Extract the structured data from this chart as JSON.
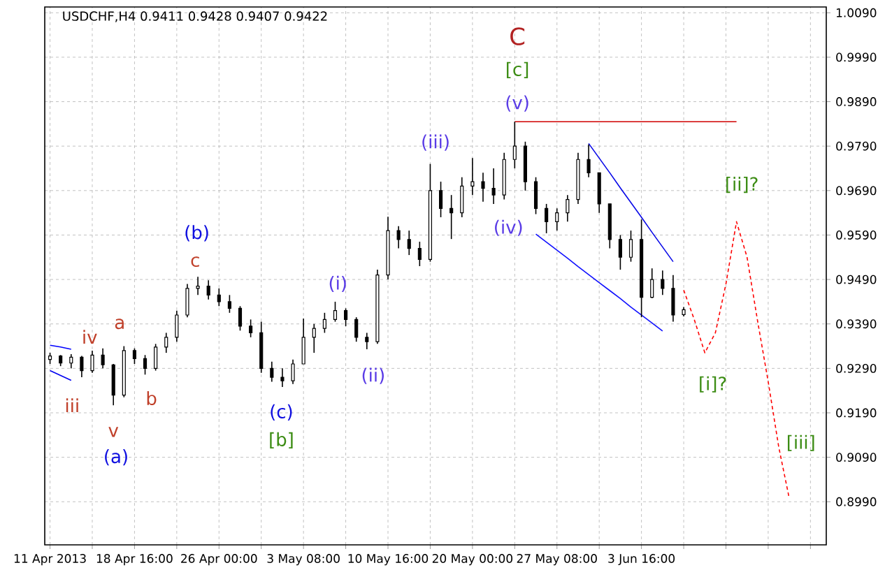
{
  "chart_data": {
    "type": "candlestick",
    "title": "USDCHF,H4  0.9411 0.9428 0.9407 0.9422",
    "color": "#000000",
    "categories": [
      "11 Apr 2013",
      null,
      null,
      null,
      null,
      null,
      null,
      null,
      "18 Apr 16:00",
      null,
      null,
      null,
      null,
      null,
      null,
      null,
      "26 Apr 00:00",
      null,
      null,
      null,
      null,
      null,
      null,
      null,
      "3 May 08:00",
      null,
      null,
      null,
      null,
      null,
      null,
      null,
      "10 May 16:00",
      null,
      null,
      null,
      null,
      null,
      null,
      null,
      "20 May 00:00",
      null,
      null,
      null,
      null,
      null,
      null,
      null,
      "27 May 08:00",
      null,
      null,
      null,
      null,
      null,
      null,
      null,
      "3 Jun 16:00",
      null,
      null,
      null,
      null,
      null,
      null,
      null,
      null,
      null,
      null,
      null,
      null,
      null,
      null,
      null,
      null,
      null
    ],
    "ohlc": [
      [
        0.931,
        0.9325,
        0.93,
        0.9318
      ],
      [
        0.9318,
        0.932,
        0.9295,
        0.9302
      ],
      [
        0.9302,
        0.9322,
        0.929,
        0.9315
      ],
      [
        0.9315,
        0.9318,
        0.927,
        0.9285
      ],
      [
        0.9285,
        0.933,
        0.928,
        0.932
      ],
      [
        0.932,
        0.9335,
        0.929,
        0.9298
      ],
      [
        0.9298,
        0.93,
        0.9207,
        0.923
      ],
      [
        0.923,
        0.934,
        0.9225,
        0.933
      ],
      [
        0.933,
        0.9335,
        0.93,
        0.9312
      ],
      [
        0.9312,
        0.932,
        0.9276,
        0.929
      ],
      [
        0.929,
        0.9345,
        0.9285,
        0.9338
      ],
      [
        0.9338,
        0.937,
        0.9325,
        0.936
      ],
      [
        0.936,
        0.942,
        0.935,
        0.941
      ],
      [
        0.941,
        0.948,
        0.9405,
        0.947
      ],
      [
        0.947,
        0.9496,
        0.9455,
        0.9475
      ],
      [
        0.9475,
        0.9488,
        0.9445,
        0.9455
      ],
      [
        0.9455,
        0.947,
        0.943,
        0.944
      ],
      [
        0.944,
        0.9455,
        0.9415,
        0.9425
      ],
      [
        0.9425,
        0.943,
        0.9375,
        0.9385
      ],
      [
        0.9385,
        0.94,
        0.936,
        0.937
      ],
      [
        0.937,
        0.9395,
        0.928,
        0.929
      ],
      [
        0.929,
        0.9305,
        0.926,
        0.927
      ],
      [
        0.927,
        0.929,
        0.9248,
        0.9262
      ],
      [
        0.9262,
        0.931,
        0.9255,
        0.93
      ],
      [
        0.93,
        0.9402,
        0.93,
        0.936
      ],
      [
        0.936,
        0.939,
        0.9325,
        0.938
      ],
      [
        0.938,
        0.9415,
        0.937,
        0.94
      ],
      [
        0.94,
        0.944,
        0.9395,
        0.942
      ],
      [
        0.942,
        0.9425,
        0.9385,
        0.94
      ],
      [
        0.94,
        0.9405,
        0.935,
        0.936
      ],
      [
        0.936,
        0.937,
        0.9333,
        0.935
      ],
      [
        0.935,
        0.9512,
        0.9345,
        0.95
      ],
      [
        0.95,
        0.9631,
        0.949,
        0.96
      ],
      [
        0.96,
        0.961,
        0.956,
        0.958
      ],
      [
        0.958,
        0.96,
        0.9545,
        0.956
      ],
      [
        0.956,
        0.9575,
        0.952,
        0.9535
      ],
      [
        0.9535,
        0.975,
        0.953,
        0.969
      ],
      [
        0.969,
        0.971,
        0.963,
        0.965
      ],
      [
        0.965,
        0.968,
        0.9581,
        0.964
      ],
      [
        0.964,
        0.972,
        0.963,
        0.97
      ],
      [
        0.97,
        0.9763,
        0.968,
        0.971
      ],
      [
        0.971,
        0.973,
        0.9665,
        0.9695
      ],
      [
        0.9695,
        0.974,
        0.966,
        0.968
      ],
      [
        0.968,
        0.9775,
        0.967,
        0.976
      ],
      [
        0.976,
        0.9845,
        0.974,
        0.979
      ],
      [
        0.979,
        0.98,
        0.969,
        0.971
      ],
      [
        0.971,
        0.972,
        0.9637,
        0.965
      ],
      [
        0.965,
        0.966,
        0.9594,
        0.962
      ],
      [
        0.962,
        0.965,
        0.96,
        0.964
      ],
      [
        0.964,
        0.968,
        0.962,
        0.967
      ],
      [
        0.967,
        0.9775,
        0.966,
        0.976
      ],
      [
        0.976,
        0.9794,
        0.972,
        0.973
      ],
      [
        0.973,
        0.973,
        0.964,
        0.966
      ],
      [
        0.966,
        0.966,
        0.956,
        0.958
      ],
      [
        0.958,
        0.959,
        0.9512,
        0.954
      ],
      [
        0.954,
        0.96,
        0.953,
        0.958
      ],
      [
        0.958,
        0.9625,
        0.9405,
        0.945
      ],
      [
        0.945,
        0.9515,
        0.9448,
        0.949
      ],
      [
        0.949,
        0.951,
        0.9455,
        0.947
      ],
      [
        0.947,
        0.95,
        0.9395,
        0.941
      ],
      [
        0.9411,
        0.9428,
        0.9407,
        0.9422
      ],
      null,
      null,
      null,
      null,
      null,
      null,
      null,
      null,
      null,
      null,
      null,
      null,
      null
    ],
    "series": [
      {
        "type": "line",
        "color": "#0000ff",
        "values": [
          0.9342,
          0.9338,
          0.9333,
          null,
          null,
          null,
          null,
          null,
          null,
          null,
          null,
          null,
          null,
          null,
          null,
          null,
          null,
          null,
          null,
          null,
          null,
          null,
          null,
          null,
          null,
          null,
          null,
          null,
          null,
          null,
          null,
          null,
          null,
          null,
          null,
          null,
          null,
          null,
          null,
          null,
          null,
          null,
          null,
          null,
          null,
          null,
          null,
          null,
          null,
          null,
          null,
          null,
          null,
          null,
          null,
          null,
          null,
          null,
          null,
          null,
          null,
          null,
          null,
          null,
          null,
          null,
          null,
          null,
          null,
          null,
          null,
          null,
          null,
          null
        ]
      },
      {
        "type": "line",
        "color": "#0000f0",
        "values": [
          0.9285,
          0.9274,
          0.9263,
          null,
          null,
          null,
          null,
          null,
          null,
          null,
          null,
          null,
          null,
          null,
          null,
          null,
          null,
          null,
          null,
          null,
          null,
          null,
          null,
          null,
          null,
          null,
          null,
          null,
          null,
          null,
          null,
          null,
          null,
          null,
          null,
          null,
          null,
          null,
          null,
          null,
          null,
          null,
          null,
          null,
          null,
          null,
          null,
          null,
          null,
          null,
          null,
          null,
          null,
          null,
          null,
          null,
          null,
          null,
          null,
          null,
          null,
          null,
          null,
          null,
          null,
          null,
          null,
          null,
          null,
          null,
          null,
          null,
          null,
          null
        ]
      },
      {
        "type": "line",
        "color": "#0808e8",
        "values": [
          null,
          null,
          null,
          null,
          null,
          null,
          null,
          null,
          null,
          null,
          null,
          null,
          null,
          null,
          null,
          null,
          null,
          null,
          null,
          null,
          null,
          null,
          null,
          null,
          null,
          null,
          null,
          null,
          null,
          null,
          null,
          null,
          null,
          null,
          null,
          null,
          null,
          null,
          null,
          null,
          null,
          null,
          null,
          null,
          null,
          null,
          null,
          null,
          null,
          null,
          null,
          0.9796,
          0.9763,
          0.973,
          0.9696,
          0.9663,
          0.963,
          0.9596,
          0.9563,
          0.953,
          null,
          null,
          null,
          null,
          null,
          null,
          null,
          null,
          null,
          null,
          null,
          null,
          null,
          null
        ]
      },
      {
        "type": "line",
        "color": "#1010ff",
        "values": [
          null,
          null,
          null,
          null,
          null,
          null,
          null,
          null,
          null,
          null,
          null,
          null,
          null,
          null,
          null,
          null,
          null,
          null,
          null,
          null,
          null,
          null,
          null,
          null,
          null,
          null,
          null,
          null,
          null,
          null,
          null,
          null,
          null,
          null,
          null,
          null,
          null,
          null,
          null,
          null,
          null,
          null,
          null,
          null,
          null,
          null,
          0.9592,
          0.9574,
          0.9556,
          0.9538,
          0.9519,
          0.9501,
          0.9483,
          0.9465,
          0.9447,
          0.9428,
          0.941,
          0.9392,
          0.9374,
          null,
          null,
          null,
          null,
          null,
          null,
          null,
          null,
          null,
          null,
          null,
          null,
          null,
          null,
          null
        ]
      },
      {
        "type": "line",
        "color": "#d00000",
        "values": [
          null,
          null,
          null,
          null,
          null,
          null,
          null,
          null,
          null,
          null,
          null,
          null,
          null,
          null,
          null,
          null,
          null,
          null,
          null,
          null,
          null,
          null,
          null,
          null,
          null,
          null,
          null,
          null,
          null,
          null,
          null,
          null,
          null,
          null,
          null,
          null,
          null,
          null,
          null,
          null,
          null,
          null,
          null,
          null,
          0.9845,
          0.9845,
          0.9845,
          0.9845,
          0.9845,
          0.9845,
          0.9845,
          0.9845,
          0.9845,
          0.9845,
          0.9845,
          0.9845,
          0.9845,
          0.9845,
          0.9845,
          0.9845,
          0.9845,
          0.9845,
          0.9845,
          0.9845,
          0.9845,
          0.9845,
          null,
          null,
          null,
          null,
          null,
          null,
          null,
          null
        ]
      },
      {
        "type": "line",
        "color": "#ff0000",
        "line_style": "dashed",
        "values": [
          null,
          null,
          null,
          null,
          null,
          null,
          null,
          null,
          null,
          null,
          null,
          null,
          null,
          null,
          null,
          null,
          null,
          null,
          null,
          null,
          null,
          null,
          null,
          null,
          null,
          null,
          null,
          null,
          null,
          null,
          null,
          null,
          null,
          null,
          null,
          null,
          null,
          null,
          null,
          null,
          null,
          null,
          null,
          null,
          null,
          null,
          null,
          null,
          null,
          null,
          null,
          null,
          null,
          null,
          null,
          null,
          null,
          null,
          null,
          null,
          0.9466,
          0.94,
          0.9325,
          0.937,
          0.948,
          0.962,
          0.954,
          0.9396,
          0.926,
          0.9113,
          0.8997,
          null,
          null,
          null
        ]
      }
    ],
    "annotations": [
      "iii",
      "iv",
      "v",
      "(a)",
      "a",
      "b",
      "(b)",
      "c",
      "(c)",
      "[b]",
      "(i)",
      "(ii)",
      "(iii)",
      "C",
      "[c]",
      "(v)",
      "(iv)",
      "[ii]?",
      "[i]?",
      "[iii]"
    ],
    "ylim": [
      0.8893,
      1.0103
    ],
    "yticks": [
      {
        "value": 0.899,
        "label": "0.8990"
      },
      {
        "value": 0.909,
        "label": "0.9090"
      },
      {
        "value": 0.919,
        "label": "0.9190"
      },
      {
        "value": 0.929,
        "label": "0.9290"
      },
      {
        "value": 0.939,
        "label": "0.9390"
      },
      {
        "value": 0.949,
        "label": "0.9490"
      },
      {
        "value": 0.959,
        "label": "0.9590"
      },
      {
        "value": 0.969,
        "label": "0.9690"
      },
      {
        "value": 0.979,
        "label": "0.9790"
      },
      {
        "value": 0.989,
        "label": "0.9890"
      },
      {
        "value": 0.999,
        "label": "0.9990"
      },
      {
        "value": 1.009,
        "label": "1.0090"
      }
    ],
    "grid": true,
    "marker": "none"
  }
}
